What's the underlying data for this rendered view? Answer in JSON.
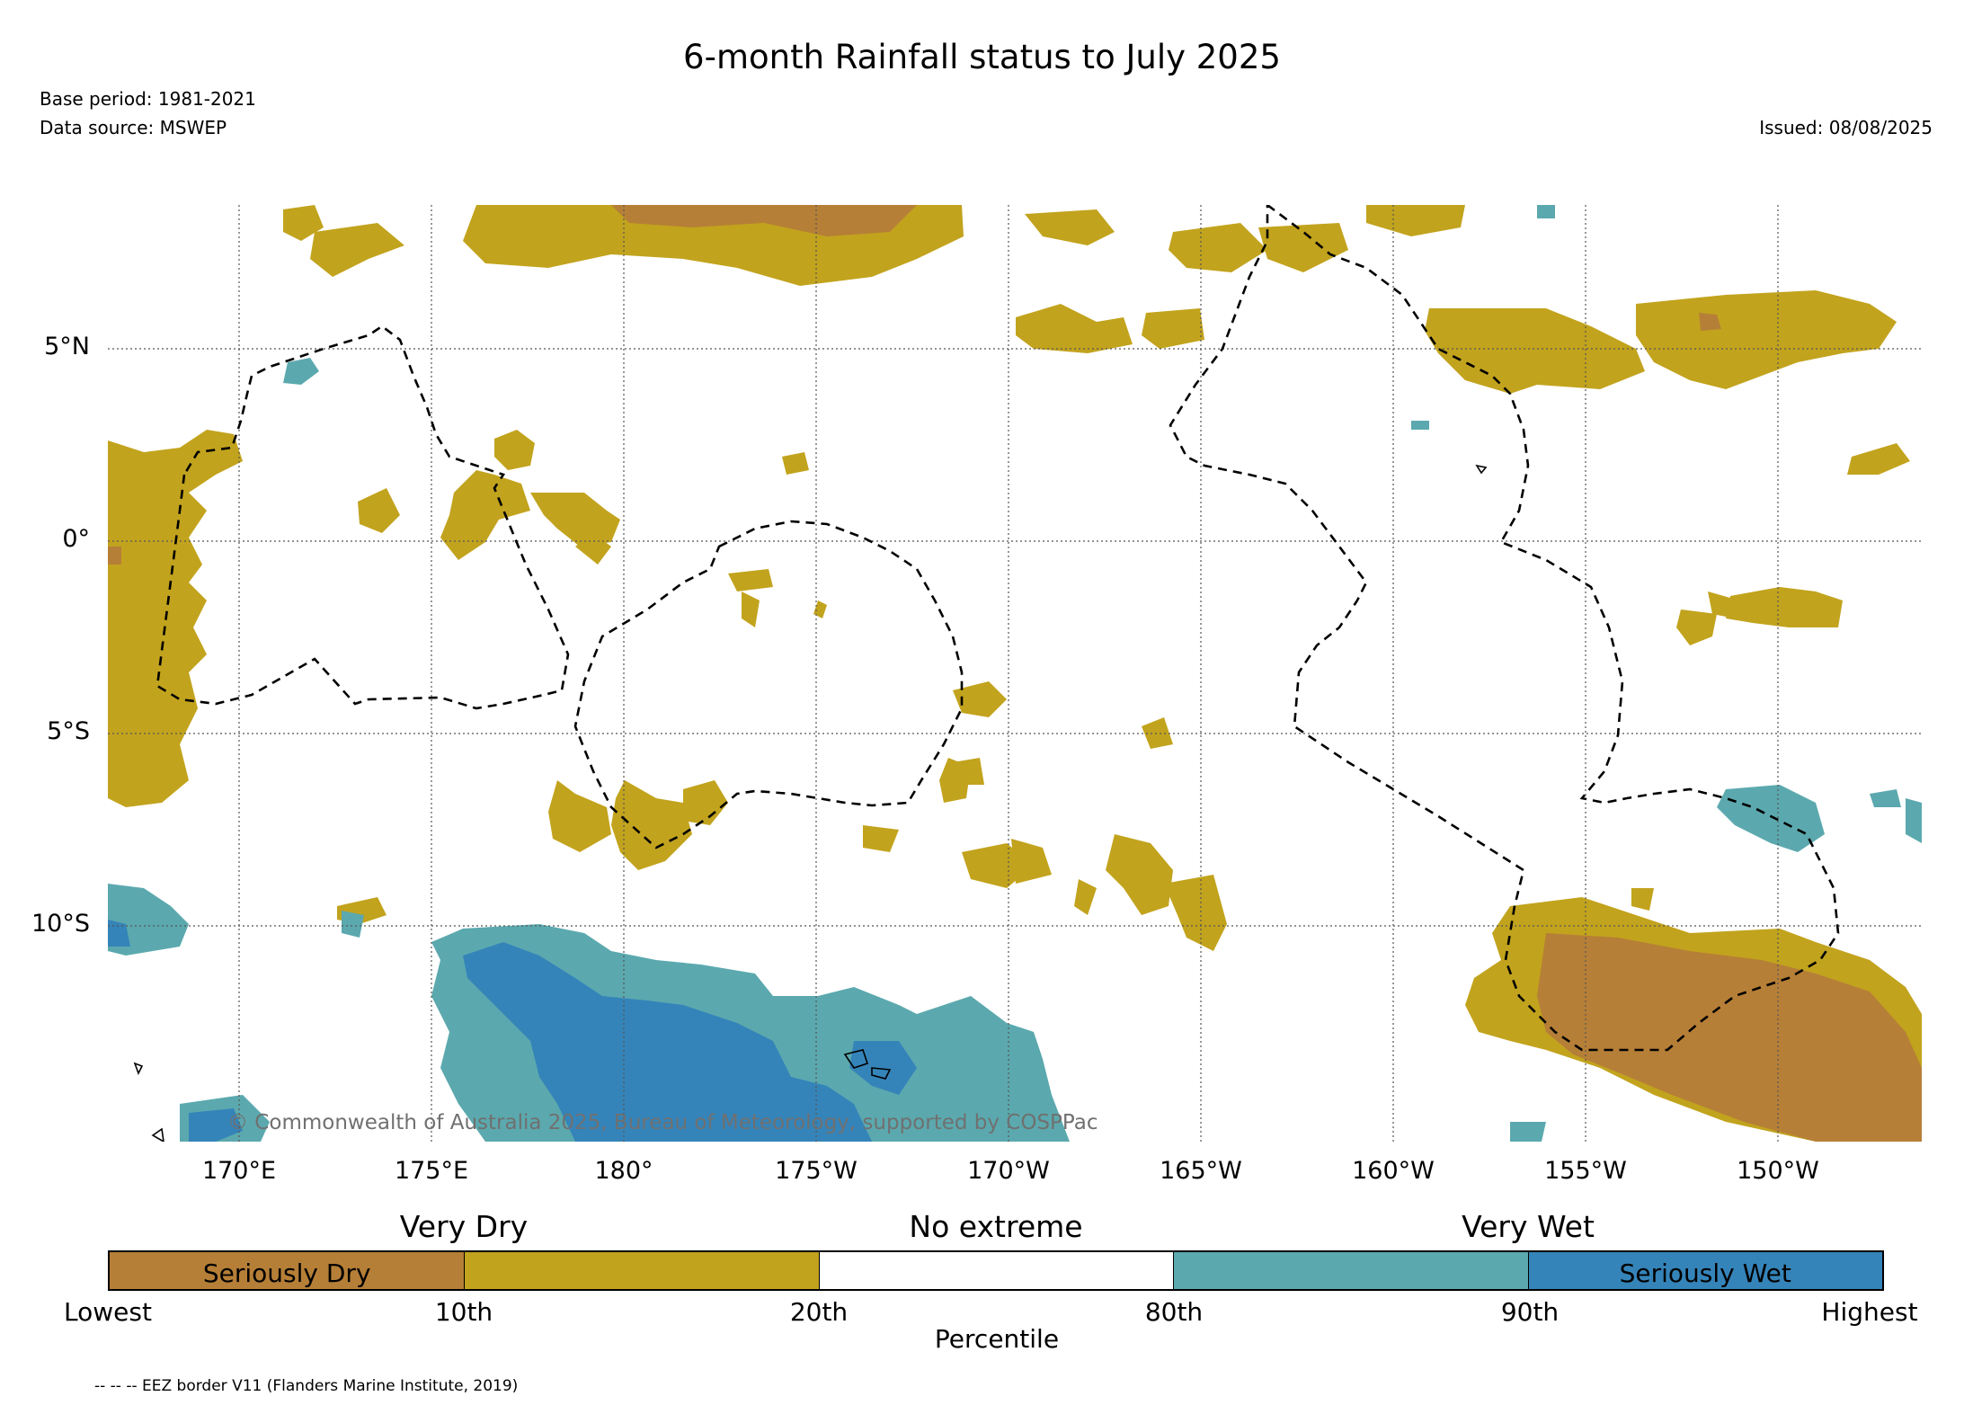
{
  "header": {
    "title": "6-month Rainfall status to July 2025",
    "base_period": "Base period: 1981-2021",
    "data_source": "Data source: MSWEP",
    "issued": "Issued: 08/08/2025"
  },
  "map": {
    "lat_labels": [
      "5°N",
      "0°",
      "5°S",
      "10°S"
    ],
    "lon_labels": [
      "170°E",
      "175°E",
      "180°",
      "175°W",
      "170°W",
      "165°W",
      "160°W",
      "155°W",
      "150°W"
    ],
    "copyright": "© Commonwealth of Australia 2025, Bureau of Meteorology, supported by COSPPac"
  },
  "legend": {
    "category_labels": {
      "very_dry": "Very Dry",
      "no_extreme": "No extreme",
      "very_wet": "Very Wet"
    },
    "bins": [
      {
        "label": "Seriously Dry",
        "color": "#b67f37"
      },
      {
        "label": "",
        "color": "#c2a31d"
      },
      {
        "label": "",
        "color": "#ffffff"
      },
      {
        "label": "",
        "color": "#5ba9ae"
      },
      {
        "label": "Seriously Wet",
        "color": "#3584b9"
      }
    ],
    "tick_labels": [
      "Lowest",
      "10th",
      "20th",
      "80th",
      "90th",
      "Highest"
    ],
    "axis_label": "Percentile"
  },
  "footnote": "-- -- -- EEZ border V11 (Flanders Marine Institute, 2019)",
  "colors": {
    "seriously_dry": "#b67f37",
    "very_dry": "#c2a31d",
    "no_extreme": "#ffffff",
    "very_wet": "#5ba9ae",
    "seriously_wet": "#3584b9"
  }
}
